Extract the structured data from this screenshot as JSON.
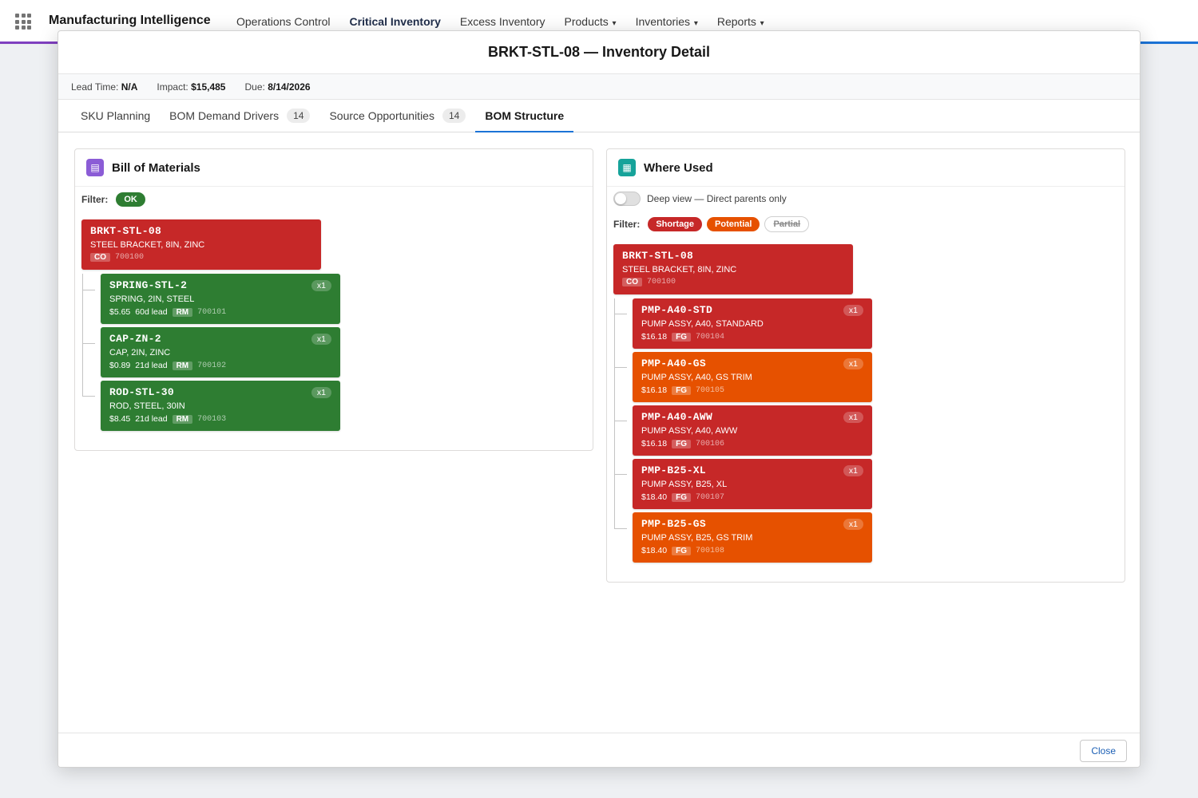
{
  "app": {
    "name": "Manufacturing Intelligence",
    "nav": [
      {
        "label": "Operations Control",
        "active": false,
        "dropdown": false
      },
      {
        "label": "Critical Inventory",
        "active": true,
        "dropdown": false
      },
      {
        "label": "Excess Inventory",
        "active": false,
        "dropdown": false
      },
      {
        "label": "Products",
        "active": false,
        "dropdown": true
      },
      {
        "label": "Inventories",
        "active": false,
        "dropdown": true
      },
      {
        "label": "Reports",
        "active": false,
        "dropdown": true
      }
    ]
  },
  "modal": {
    "title": "BRKT-STL-08 — Inventory Detail",
    "meta": {
      "lead_time_label": "Lead Time:",
      "lead_time": "N/A",
      "impact_label": "Impact:",
      "impact": "$15,485",
      "due_label": "Due:",
      "due": "8/14/2026"
    },
    "tabs": [
      {
        "label": "SKU Planning",
        "count": null,
        "active": false
      },
      {
        "label": "BOM Demand Drivers",
        "count": "14",
        "active": false
      },
      {
        "label": "Source Opportunities",
        "count": "14",
        "active": false
      },
      {
        "label": "BOM Structure",
        "count": null,
        "active": true
      }
    ],
    "close_label": "Close"
  },
  "bom": {
    "title": "Bill of Materials",
    "filter_label": "Filter:",
    "filter_chip": "OK",
    "root": {
      "sku": "BRKT-STL-08",
      "desc": "STEEL BRACKET, 8IN, ZINC",
      "tag": "CO",
      "id": "700100",
      "color": "#c62828"
    },
    "children": [
      {
        "sku": "SPRING-STL-2",
        "desc": "SPRING, 2IN, STEEL",
        "price": "$5.65",
        "lead": "60d lead",
        "tag": "RM",
        "id": "700101",
        "qty": "x1",
        "status": "green"
      },
      {
        "sku": "CAP-ZN-2",
        "desc": "CAP, 2IN, ZINC",
        "price": "$0.89",
        "lead": "21d lead",
        "tag": "RM",
        "id": "700102",
        "qty": "x1",
        "status": "green"
      },
      {
        "sku": "ROD-STL-30",
        "desc": "ROD, STEEL, 30IN",
        "price": "$8.45",
        "lead": "21d lead",
        "tag": "RM",
        "id": "700103",
        "qty": "x1",
        "status": "green"
      }
    ]
  },
  "where_used": {
    "title": "Where Used",
    "toggle_label": "Deep view — Direct parents only",
    "filter_label": "Filter:",
    "chips": {
      "shortage": "Shortage",
      "potential": "Potential",
      "partial": "Partial"
    },
    "root": {
      "sku": "BRKT-STL-08",
      "desc": "STEEL BRACKET, 8IN, ZINC",
      "tag": "CO",
      "id": "700100"
    },
    "parents": [
      {
        "sku": "PMP-A40-STD",
        "desc": "PUMP ASSY, A40, STANDARD",
        "price": "$16.18",
        "tag": "FG",
        "id": "700104",
        "qty": "x1",
        "status": "red"
      },
      {
        "sku": "PMP-A40-GS",
        "desc": "PUMP ASSY, A40, GS TRIM",
        "price": "$16.18",
        "tag": "FG",
        "id": "700105",
        "qty": "x1",
        "status": "orange"
      },
      {
        "sku": "PMP-A40-AWW",
        "desc": "PUMP ASSY, A40, AWW",
        "price": "$16.18",
        "tag": "FG",
        "id": "700106",
        "qty": "x1",
        "status": "red"
      },
      {
        "sku": "PMP-B25-XL",
        "desc": "PUMP ASSY, B25, XL",
        "price": "$18.40",
        "tag": "FG",
        "id": "700107",
        "qty": "x1",
        "status": "red"
      },
      {
        "sku": "PMP-B25-GS",
        "desc": "PUMP ASSY, B25, GS TRIM",
        "price": "$18.40",
        "tag": "FG",
        "id": "700108",
        "qty": "x1",
        "status": "orange"
      }
    ]
  },
  "colors": {
    "red": "#c62828",
    "green": "#2e7d32",
    "orange": "#e65100",
    "accent": "#1b73d6"
  }
}
